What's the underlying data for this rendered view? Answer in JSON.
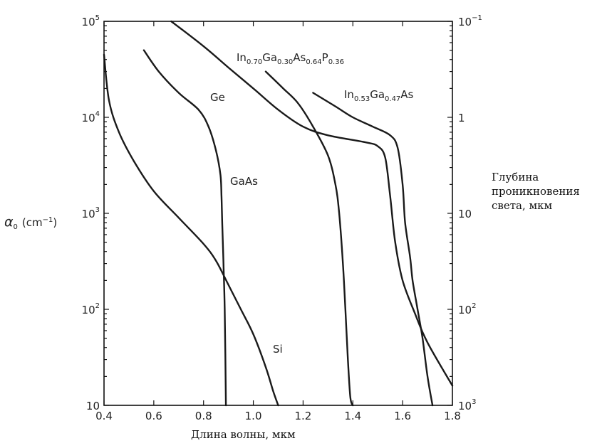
{
  "chart_data": {
    "type": "line",
    "x_axis": {
      "label": "Длина волны, мкм",
      "range": [
        0.4,
        1.8
      ],
      "ticks": [
        "0.4",
        "0.6",
        "0.8",
        "1.0",
        "1.2",
        "1.4",
        "1.6",
        "1.8"
      ]
    },
    "y_axis_left": {
      "label_symbol": "α",
      "label_subscript": "0",
      "label_unit": "(cm",
      "label_unit_sup": "−1",
      "label_close": ")",
      "scale": "log",
      "range": [
        10,
        100000
      ],
      "ticks": [
        {
          "value": 10,
          "base": "10",
          "exp": ""
        },
        {
          "value": 100,
          "base": "10",
          "exp": "2"
        },
        {
          "value": 1000,
          "base": "10",
          "exp": "3"
        },
        {
          "value": 10000,
          "base": "10",
          "exp": "4"
        },
        {
          "value": 100000,
          "base": "10",
          "exp": "5"
        }
      ]
    },
    "y_axis_right": {
      "label_lines": [
        "Глубина",
        "проникновения",
        "света, мкм"
      ],
      "scale": "log",
      "ticks": [
        {
          "base": "10",
          "exp": "−1"
        },
        {
          "base": "1",
          "exp": ""
        },
        {
          "base": "10",
          "exp": ""
        },
        {
          "base": "10",
          "exp": "2"
        },
        {
          "base": "10",
          "exp": "3"
        }
      ]
    },
    "series": [
      {
        "name": "Si",
        "label_main": "Si",
        "points": [
          [
            0.4,
            45000
          ],
          [
            0.42,
            15000
          ],
          [
            0.46,
            7000
          ],
          [
            0.52,
            3500
          ],
          [
            0.6,
            1700
          ],
          [
            0.7,
            900
          ],
          [
            0.8,
            480
          ],
          [
            0.85,
            320
          ],
          [
            0.9,
            180
          ],
          [
            0.95,
            100
          ],
          [
            1.0,
            55
          ],
          [
            1.05,
            25
          ],
          [
            1.08,
            14
          ],
          [
            1.1,
            10
          ]
        ]
      },
      {
        "name": "GaAs",
        "label_main": "GaAs",
        "points": [
          [
            0.56,
            50000
          ],
          [
            0.62,
            30000
          ],
          [
            0.7,
            18000
          ],
          [
            0.78,
            12000
          ],
          [
            0.82,
            8000
          ],
          [
            0.85,
            4500
          ],
          [
            0.868,
            2500
          ],
          [
            0.872,
            1500
          ],
          [
            0.875,
            800
          ],
          [
            0.88,
            300
          ],
          [
            0.885,
            100
          ],
          [
            0.89,
            10
          ]
        ]
      },
      {
        "name": "Ge",
        "label_main": "Ge",
        "points": [
          [
            0.67,
            100000
          ],
          [
            0.8,
            55000
          ],
          [
            0.9,
            33000
          ],
          [
            1.0,
            20000
          ],
          [
            1.1,
            12000
          ],
          [
            1.2,
            8000
          ],
          [
            1.3,
            6500
          ],
          [
            1.45,
            5500
          ],
          [
            1.5,
            5000
          ],
          [
            1.53,
            3800
          ],
          [
            1.55,
            1500
          ],
          [
            1.57,
            500
          ],
          [
            1.6,
            200
          ],
          [
            1.65,
            90
          ],
          [
            1.7,
            45
          ],
          [
            1.8,
            16
          ]
        ]
      },
      {
        "name": "In0.70Ga0.30As0.64P0.36",
        "label_main": "In",
        "label_parts": [
          [
            "In",
            ""
          ],
          [
            "0.70",
            "sub"
          ],
          [
            "Ga",
            ""
          ],
          [
            "0.30",
            "sub"
          ],
          [
            "As",
            ""
          ],
          [
            "0.64",
            "sub"
          ],
          [
            "P",
            ""
          ],
          [
            "0.36",
            "sub"
          ]
        ],
        "points": [
          [
            1.05,
            30000
          ],
          [
            1.12,
            20000
          ],
          [
            1.18,
            14000
          ],
          [
            1.24,
            8000
          ],
          [
            1.3,
            4000
          ],
          [
            1.33,
            2000
          ],
          [
            1.345,
            1000
          ],
          [
            1.36,
            300
          ],
          [
            1.37,
            100
          ],
          [
            1.38,
            30
          ],
          [
            1.39,
            12
          ],
          [
            1.4,
            10
          ]
        ]
      },
      {
        "name": "In0.53Ga0.47As",
        "label_main": "In",
        "label_parts": [
          [
            "In",
            ""
          ],
          [
            "0.53",
            "sub"
          ],
          [
            "Ga",
            ""
          ],
          [
            "0.47",
            "sub"
          ],
          [
            "As",
            ""
          ]
        ],
        "points": [
          [
            1.24,
            18000
          ],
          [
            1.33,
            13000
          ],
          [
            1.4,
            10000
          ],
          [
            1.48,
            8000
          ],
          [
            1.55,
            6500
          ],
          [
            1.58,
            4800
          ],
          [
            1.6,
            2000
          ],
          [
            1.61,
            800
          ],
          [
            1.63,
            350
          ],
          [
            1.64,
            200
          ],
          [
            1.66,
            100
          ],
          [
            1.68,
            50
          ],
          [
            1.7,
            20
          ],
          [
            1.72,
            10
          ]
        ]
      }
    ]
  }
}
